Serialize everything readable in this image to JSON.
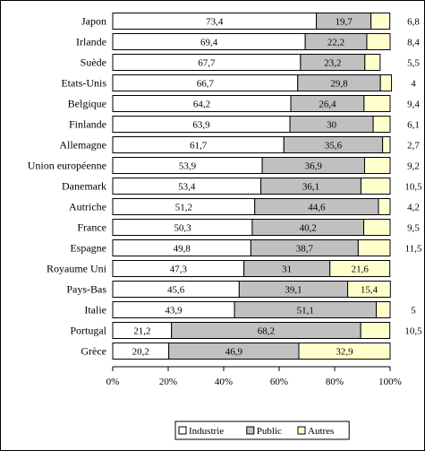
{
  "chart_data": {
    "type": "bar",
    "orientation": "horizontal",
    "stacked": "percent",
    "title": "",
    "xlabel": "",
    "ylabel": "",
    "xlim": [
      0,
      100
    ],
    "x_ticks": [
      "0%",
      "20%",
      "40%",
      "60%",
      "80%",
      "100%"
    ],
    "grid": false,
    "legend_position": "bottom",
    "categories": [
      "Japon",
      "Irlande",
      "Suède",
      "Etats-Unis",
      "Belgique",
      "Finlande",
      "Allemagne",
      "Union européenne",
      "Danemark",
      "Autriche",
      "France",
      "Espagne",
      "Royaume Uni",
      "Pays-Bas",
      "Italie",
      "Portugal",
      "Grèce"
    ],
    "series": [
      {
        "name": "Industrie",
        "color": "#ffffff",
        "values": [
          73.4,
          69.4,
          67.7,
          66.7,
          64.2,
          63.9,
          61.7,
          53.9,
          53.4,
          51.2,
          50.3,
          49.8,
          47.3,
          45.6,
          43.9,
          21.2,
          20.2
        ]
      },
      {
        "name": "Public",
        "color": "#c0c0c0",
        "values": [
          19.7,
          22.2,
          23.2,
          29.8,
          26.4,
          30,
          35.6,
          36.9,
          36.1,
          44.6,
          40.2,
          38.7,
          31,
          39.1,
          51.1,
          68.2,
          46.9
        ]
      },
      {
        "name": "Autres",
        "color": "#ffffcc",
        "values": [
          6.8,
          8.4,
          5.5,
          4,
          9.4,
          6.1,
          2.7,
          9.2,
          10.5,
          4.2,
          9.5,
          11.5,
          21.6,
          15.4,
          5,
          10.5,
          32.9
        ]
      }
    ],
    "value_labels": {
      "Industrie": [
        "73,4",
        "69,4",
        "67,7",
        "66,7",
        "64,2",
        "63,9",
        "61,7",
        "53,9",
        "53,4",
        "51,2",
        "50,3",
        "49,8",
        "47,3",
        "45,6",
        "43,9",
        "21,2",
        "20,2"
      ],
      "Public": [
        "19,7",
        "22,2",
        "23,2",
        "29,8",
        "26,4",
        "30",
        "35,6",
        "36,9",
        "36,1",
        "44,6",
        "40,2",
        "38,7",
        "31",
        "39,1",
        "51,1",
        "68,2",
        "46,9"
      ],
      "Autres": [
        "6,8",
        "8,4",
        "5,5",
        "4",
        "9,4",
        "6,1",
        "2,7",
        "9,2",
        "10,5",
        "4,2",
        "9,5",
        "11,5",
        "21,6",
        "15,4",
        "5",
        "10,5",
        "32,9"
      ]
    },
    "outside_label_series": "Autres",
    "inside_label_rows_autres": [
      12,
      13,
      16
    ]
  }
}
